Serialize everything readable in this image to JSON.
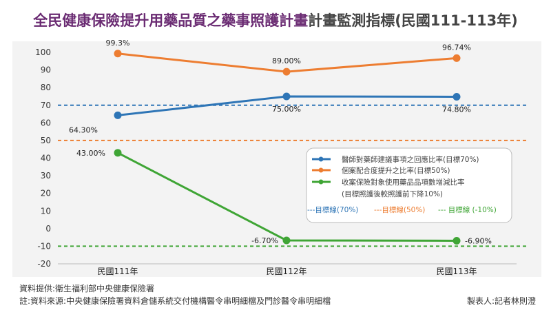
{
  "title_part1": "全民健康保險提升用藥品質之藥事照護計畫",
  "title_part2": "計畫監測指標(民國111-113年)",
  "chart_data": {
    "type": "line",
    "categories": [
      "民國111年",
      "民國112年",
      "民國113年"
    ],
    "ylim": [
      -20,
      100
    ],
    "yticks": [
      -20,
      -10,
      0,
      10,
      20,
      30,
      40,
      50,
      60,
      70,
      80,
      90,
      100
    ],
    "grid": false,
    "legend_position": "right",
    "series": [
      {
        "name": "醫師對藥師建議事項之回應比率(目標70%)",
        "color": "#2e75b6",
        "values": [
          64.3,
          75.0,
          74.8
        ],
        "labels": [
          "64.30%",
          "75.00%",
          "74.80%"
        ]
      },
      {
        "name": "個案配合度提升之比率(目標50%)",
        "color": "#ed7d31",
        "values": [
          99.3,
          89.0,
          96.74
        ],
        "labels": [
          "99.3%",
          "89.00%",
          "96.74%"
        ]
      },
      {
        "name": "收案保險對象使用藥品品項數增減比率",
        "name_line2": "(目標照護後較照護前下降10%)",
        "color": "#3fa535",
        "values": [
          43.0,
          -6.7,
          -6.9
        ],
        "labels": [
          "43.00%",
          "-6.70%",
          "-6.90%"
        ]
      }
    ],
    "target_lines": [
      {
        "label": "---目標線(70%)",
        "value": 70,
        "color": "#2e75b6"
      },
      {
        "label": "---目標線(50%)",
        "value": 50,
        "color": "#ed7d31"
      },
      {
        "label": "--- 目標線 (-10%)",
        "value": -10,
        "color": "#3fa535"
      }
    ]
  },
  "footer": {
    "source": "資料提供:衛生福利部中央健康保險署",
    "note": "註:資料來源:中央健康保險署資料倉儲系統交付機構醫令串明細檔及門診醫令串明細檔",
    "author": "製表人:記者林則澄"
  }
}
